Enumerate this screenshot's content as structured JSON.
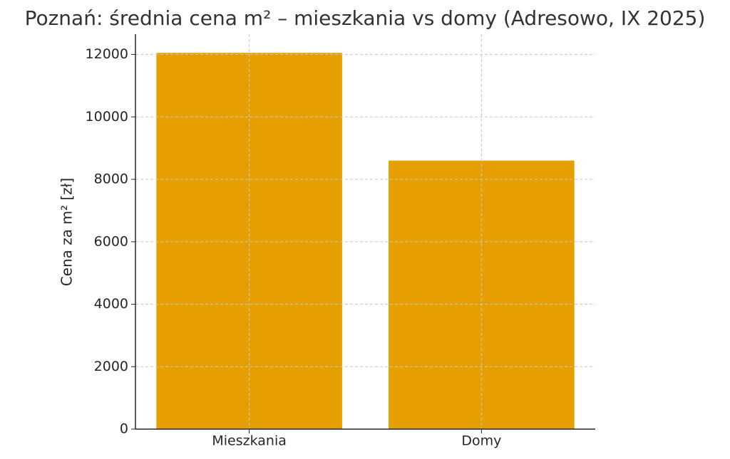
{
  "chart_data": {
    "type": "bar",
    "title": "Poznań: średnia cena m² – mieszkania vs domy (Adresowo, IX 2025)",
    "y_label": "Cena za m² [zł]",
    "categories": [
      "Mieszkania",
      "Domy"
    ],
    "values": [
      12050,
      8600
    ],
    "color": "#e69f00",
    "ylim": [
      0,
      12650
    ],
    "yticks": [
      0,
      2000,
      4000,
      6000,
      8000,
      10000,
      12000
    ],
    "grid": true
  }
}
